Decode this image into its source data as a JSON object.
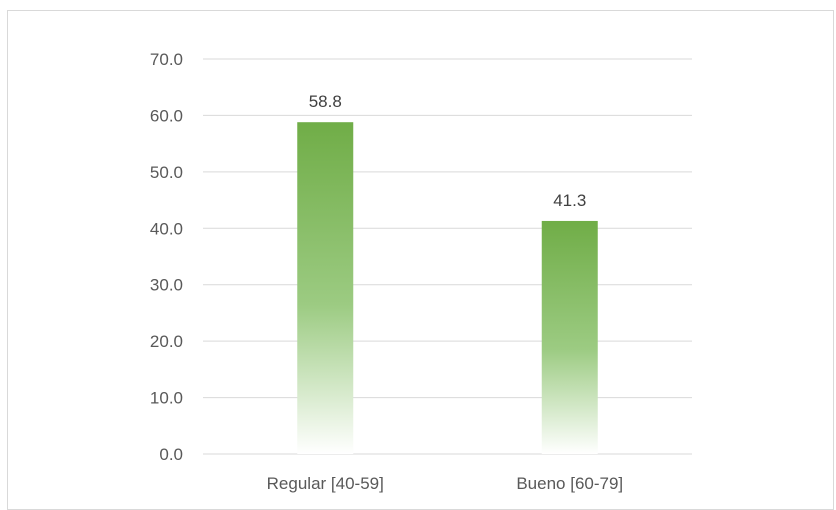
{
  "chart_data": {
    "type": "bar",
    "title": "",
    "xlabel": "",
    "ylabel": "",
    "categories": [
      "Regular [40-59]",
      "Bueno [60-79]"
    ],
    "values": [
      58.8,
      41.3
    ],
    "data_labels": [
      "58.8",
      "41.3"
    ],
    "ylim": [
      0,
      70
    ],
    "yticks": [
      0,
      10,
      20,
      30,
      40,
      50,
      60,
      70
    ],
    "ytick_labels": [
      "0.0",
      "10.0",
      "20.0",
      "30.0",
      "40.0",
      "50.0",
      "60.0",
      "70.0"
    ],
    "grid": true,
    "legend": "none",
    "colors": {
      "bar_top": "#70ad47",
      "bar_bottom": "#ffffff",
      "grid": "#d9d9d9",
      "frame": "#d9d9d9"
    }
  }
}
